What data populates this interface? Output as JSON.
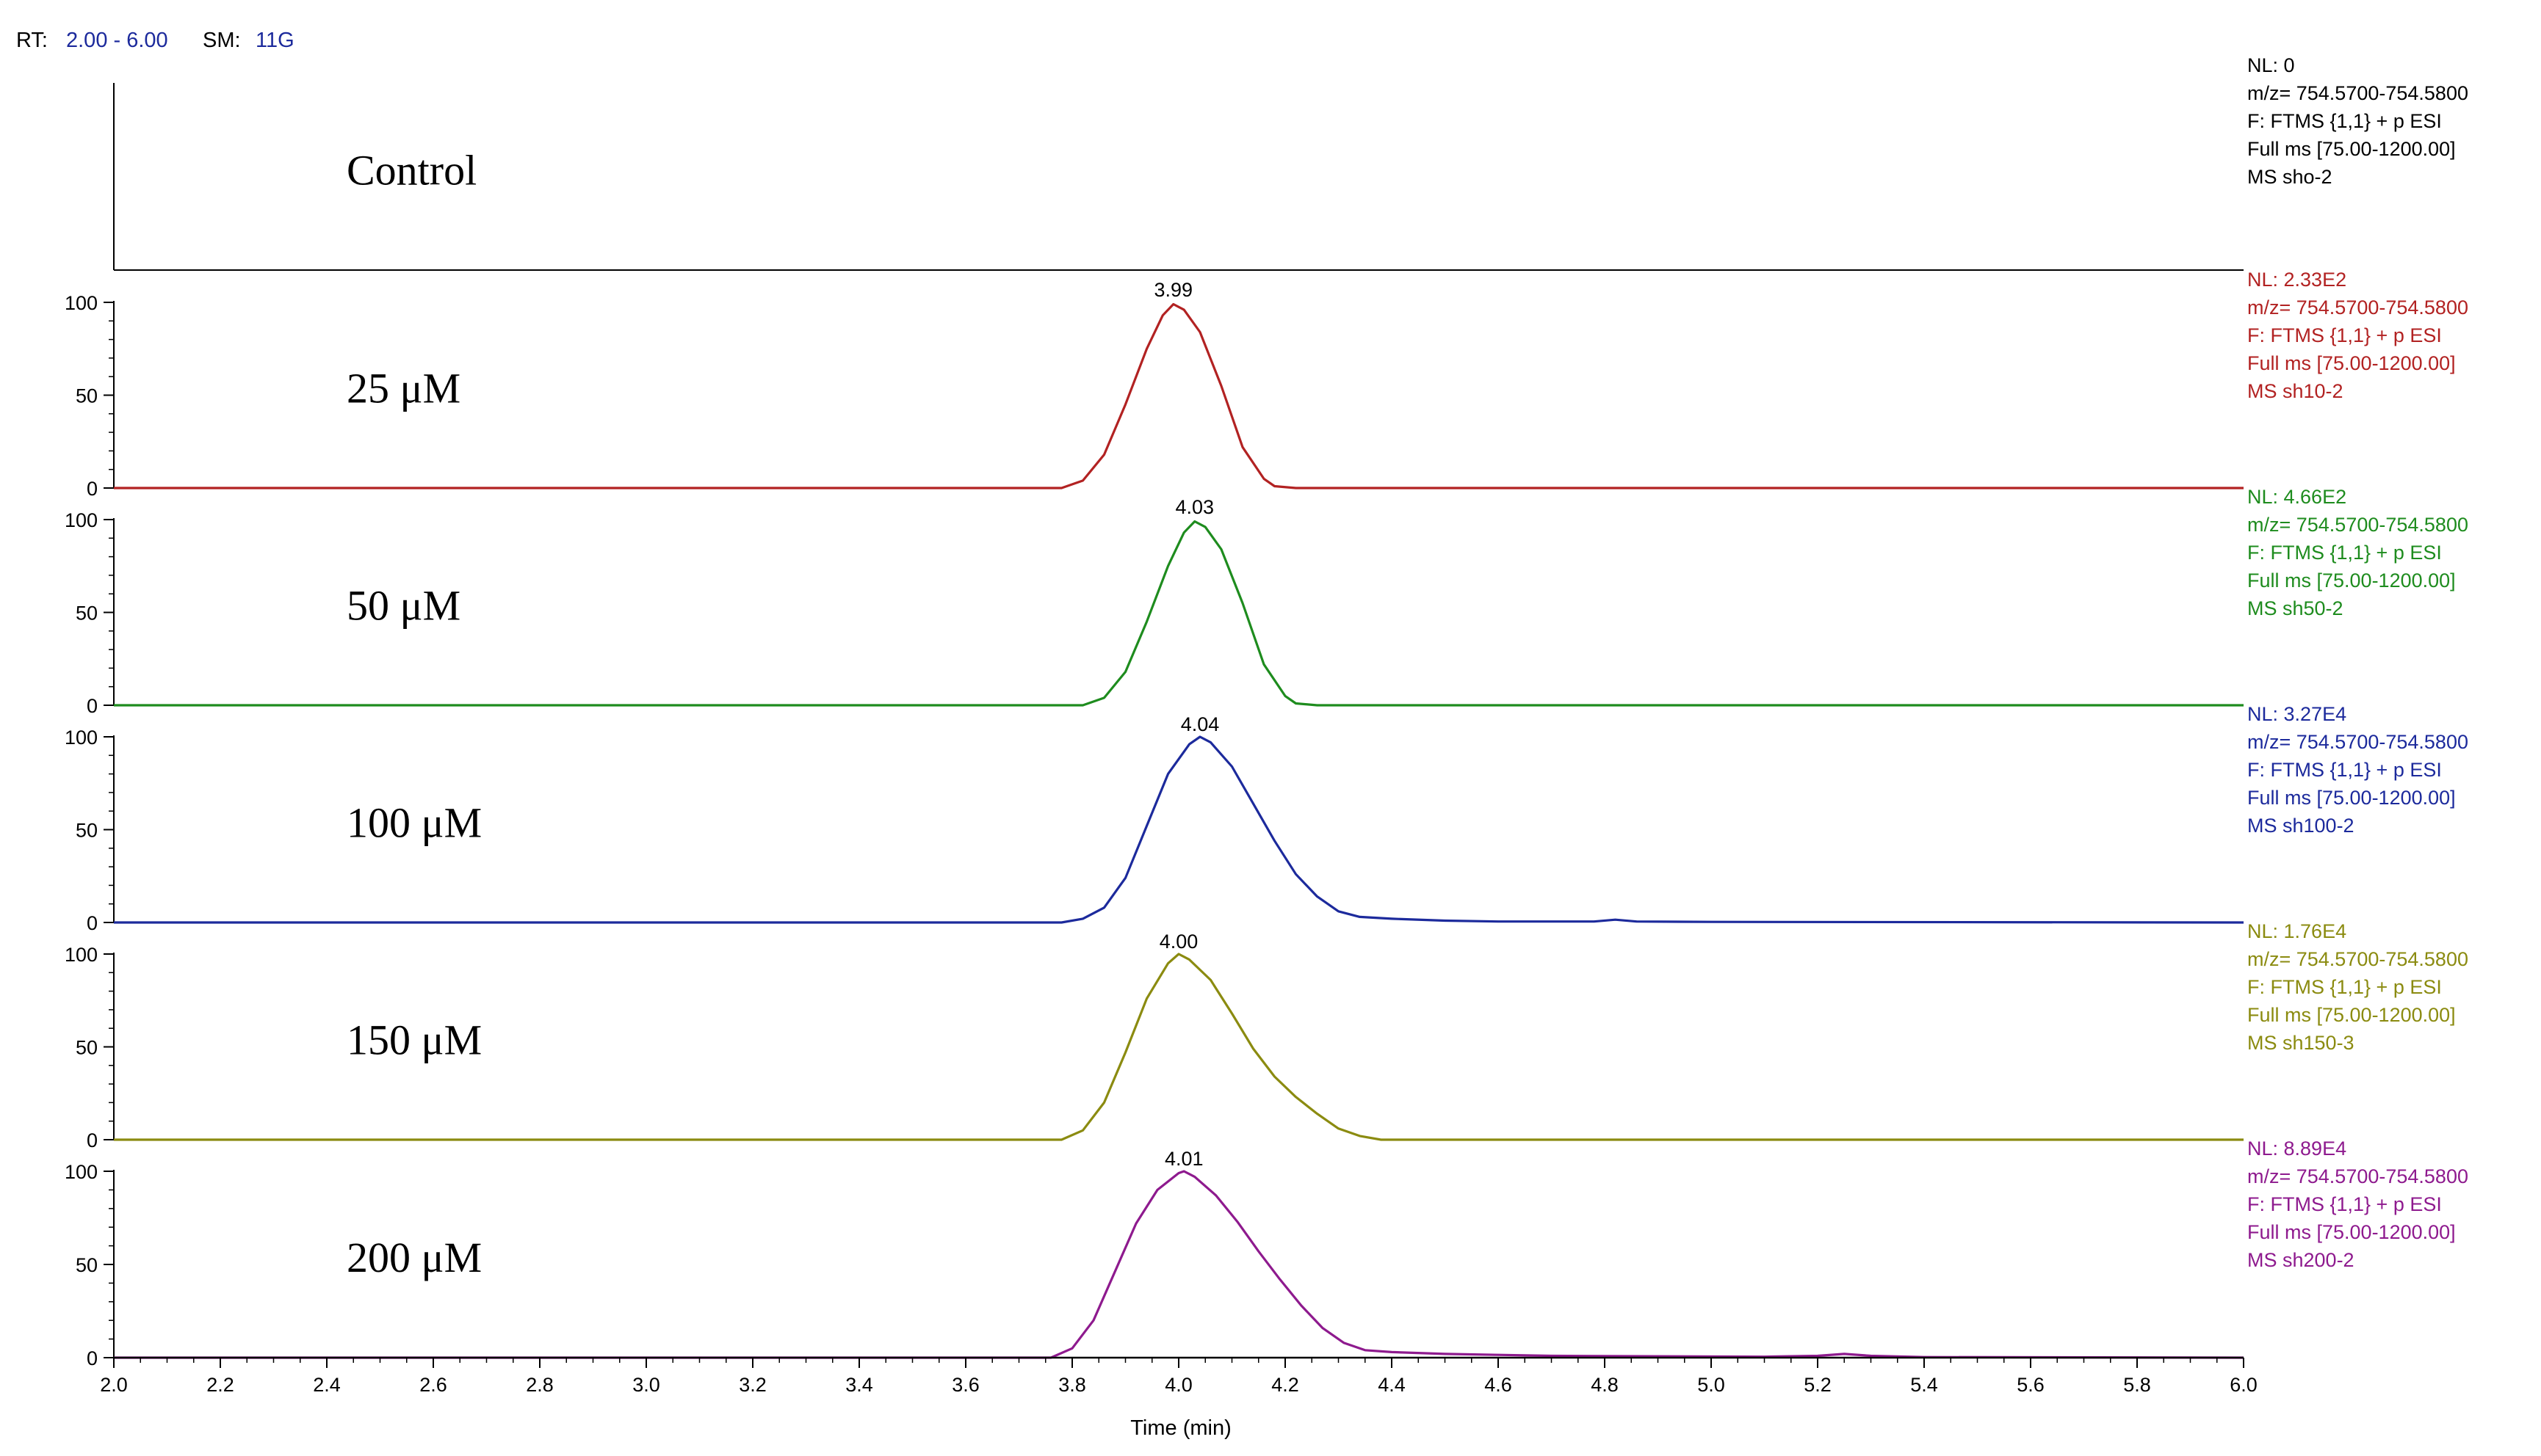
{
  "header": {
    "rt_label": "RT:",
    "rt_value": "2.00 - 6.00",
    "sm_label": "SM:",
    "sm_value": "11G"
  },
  "chart_data": {
    "type": "line",
    "xlabel": "Time (min)",
    "xlim": [
      2.0,
      6.0
    ],
    "x_ticks": [
      "2.0",
      "2.2",
      "2.4",
      "2.6",
      "2.8",
      "3.0",
      "3.2",
      "3.4",
      "3.6",
      "3.8",
      "4.0",
      "4.2",
      "4.4",
      "4.6",
      "4.8",
      "5.0",
      "5.2",
      "5.4",
      "5.6",
      "5.8",
      "6.0"
    ],
    "ylim": [
      0,
      100
    ],
    "y_ticks": [
      "0",
      "50",
      "100"
    ],
    "panels": [
      {
        "label": "Control",
        "color": "#000000",
        "show_y_axis": false,
        "peak_label": "",
        "info": [
          "NL: 0",
          "m/z= 754.5700-754.5800",
          "F: FTMS {1,1}  + p ESI",
          "Full ms [75.00-1200.00]",
          "MS sho-2"
        ],
        "x": [],
        "y": []
      },
      {
        "label": "25 μM",
        "color": "#b22222",
        "show_y_axis": true,
        "peak_label": "3.99",
        "peak_x": 3.99,
        "info": [
          "NL: 2.33E2",
          "m/z= 754.5700-754.5800",
          "F: FTMS {1,1}  + p ESI",
          "Full ms [75.00-1200.00]",
          "MS sh10-2"
        ],
        "x": [
          2.0,
          3.78,
          3.82,
          3.86,
          3.9,
          3.94,
          3.97,
          3.99,
          4.01,
          4.04,
          4.08,
          4.12,
          4.16,
          4.18,
          4.22,
          6.0
        ],
        "y": [
          0,
          0,
          4,
          18,
          45,
          75,
          93,
          99,
          96,
          84,
          55,
          22,
          5,
          1,
          0,
          0
        ]
      },
      {
        "label": "50 μM",
        "color": "#1e8c1e",
        "show_y_axis": true,
        "peak_label": "4.03",
        "peak_x": 4.03,
        "info": [
          "NL: 4.66E2",
          "m/z= 754.5700-754.5800",
          "F: FTMS {1,1}  + p ESI",
          "Full ms [75.00-1200.00]",
          "MS sh50-2"
        ],
        "x": [
          2.0,
          3.82,
          3.86,
          3.9,
          3.94,
          3.98,
          4.01,
          4.03,
          4.05,
          4.08,
          4.12,
          4.16,
          4.2,
          4.22,
          4.26,
          6.0
        ],
        "y": [
          0,
          0,
          4,
          18,
          45,
          75,
          93,
          99,
          96,
          84,
          55,
          22,
          5,
          1,
          0,
          0
        ]
      },
      {
        "label": "100 μM",
        "color": "#1c2a9c",
        "show_y_axis": true,
        "peak_label": "4.04",
        "peak_x": 4.04,
        "info": [
          "NL: 3.27E4",
          "m/z= 754.5700-754.5800",
          "F: FTMS {1,1}  + p ESI",
          "Full ms [75.00-1200.00]",
          "MS sh100-2"
        ],
        "x": [
          2.0,
          3.78,
          3.82,
          3.86,
          3.9,
          3.94,
          3.98,
          4.02,
          4.04,
          4.06,
          4.1,
          4.14,
          4.18,
          4.22,
          4.26,
          4.3,
          4.34,
          4.4,
          4.5,
          4.6,
          4.78,
          4.82,
          4.86,
          5.0,
          6.0
        ],
        "y": [
          0,
          0,
          2,
          8,
          24,
          52,
          80,
          96,
          100,
          97,
          84,
          64,
          44,
          26,
          14,
          6,
          3,
          2,
          1,
          0.5,
          0.5,
          1.5,
          0.5,
          0.3,
          0
        ]
      },
      {
        "label": "150 μM",
        "color": "#8b8b10",
        "show_y_axis": true,
        "peak_label": "4.00",
        "peak_x": 4.0,
        "info": [
          "NL: 1.76E4",
          "m/z= 754.5700-754.5800",
          "F: FTMS {1,1}  + p ESI",
          "Full ms [75.00-1200.00]",
          "MS sh150-3"
        ],
        "x": [
          2.0,
          3.78,
          3.82,
          3.86,
          3.9,
          3.94,
          3.98,
          4.0,
          4.02,
          4.06,
          4.1,
          4.14,
          4.18,
          4.22,
          4.26,
          4.3,
          4.34,
          4.38,
          6.0
        ],
        "y": [
          0,
          0,
          5,
          20,
          47,
          76,
          95,
          100,
          97,
          86,
          68,
          49,
          34,
          23,
          14,
          6,
          2,
          0,
          0
        ]
      },
      {
        "label": "200 μM",
        "color": "#8e1a8e",
        "show_y_axis": true,
        "peak_label": "4.01",
        "peak_x": 4.01,
        "info": [
          "NL: 8.89E4",
          "m/z= 754.5700-754.5800",
          "F: FTMS {1,1}  + p ESI",
          "Full ms [75.00-1200.00]",
          "MS sh200-2"
        ],
        "x": [
          2.0,
          3.76,
          3.8,
          3.84,
          3.88,
          3.92,
          3.96,
          4.0,
          4.01,
          4.03,
          4.07,
          4.11,
          4.15,
          4.19,
          4.23,
          4.27,
          4.31,
          4.35,
          4.4,
          4.5,
          4.6,
          4.7,
          5.1,
          5.2,
          5.25,
          5.3,
          5.4,
          6.0
        ],
        "y": [
          0,
          0,
          5,
          20,
          46,
          72,
          90,
          99,
          100,
          97,
          87,
          73,
          57,
          42,
          28,
          16,
          8,
          4,
          3,
          2,
          1.5,
          1,
          0.5,
          1,
          2,
          1,
          0.3,
          0
        ]
      }
    ]
  }
}
